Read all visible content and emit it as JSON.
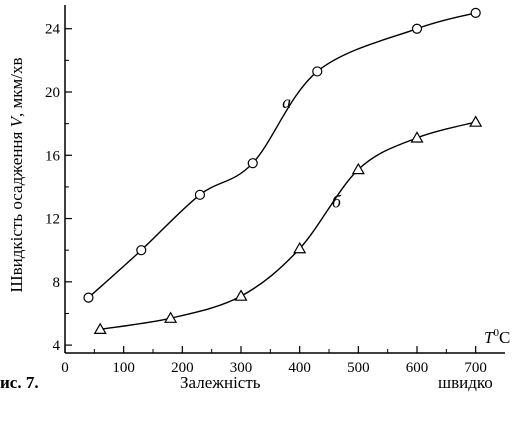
{
  "chart_data": {
    "type": "line",
    "xlabel_var": "T",
    "xlabel_sup": "0",
    "xlabel_unit": "C",
    "ylabel_prefix": "Швидкість осадження ",
    "ylabel_var": "V",
    "ylabel_suffix": ", мкм/хв",
    "xlim": [
      0,
      750
    ],
    "ylim": [
      3.5,
      25.5
    ],
    "x_ticks": [
      0,
      100,
      200,
      300,
      400,
      500,
      600,
      700
    ],
    "y_ticks": [
      4,
      8,
      12,
      16,
      20,
      24
    ],
    "grid": false,
    "series": [
      {
        "name": "а",
        "marker": "circle",
        "x": [
          40,
          130,
          230,
          320,
          430,
          600,
          700
        ],
        "y": [
          7.0,
          10.0,
          13.5,
          15.5,
          21.3,
          24.0,
          25.0
        ]
      },
      {
        "name": "б",
        "marker": "triangle",
        "x": [
          60,
          180,
          300,
          400,
          500,
          600,
          700
        ],
        "y": [
          5.0,
          5.7,
          7.1,
          10.1,
          15.1,
          17.1,
          18.1
        ]
      }
    ]
  },
  "caption": {
    "figure_number": "ис. 7.",
    "text_1": "Залежність",
    "text_2": "швидко"
  }
}
